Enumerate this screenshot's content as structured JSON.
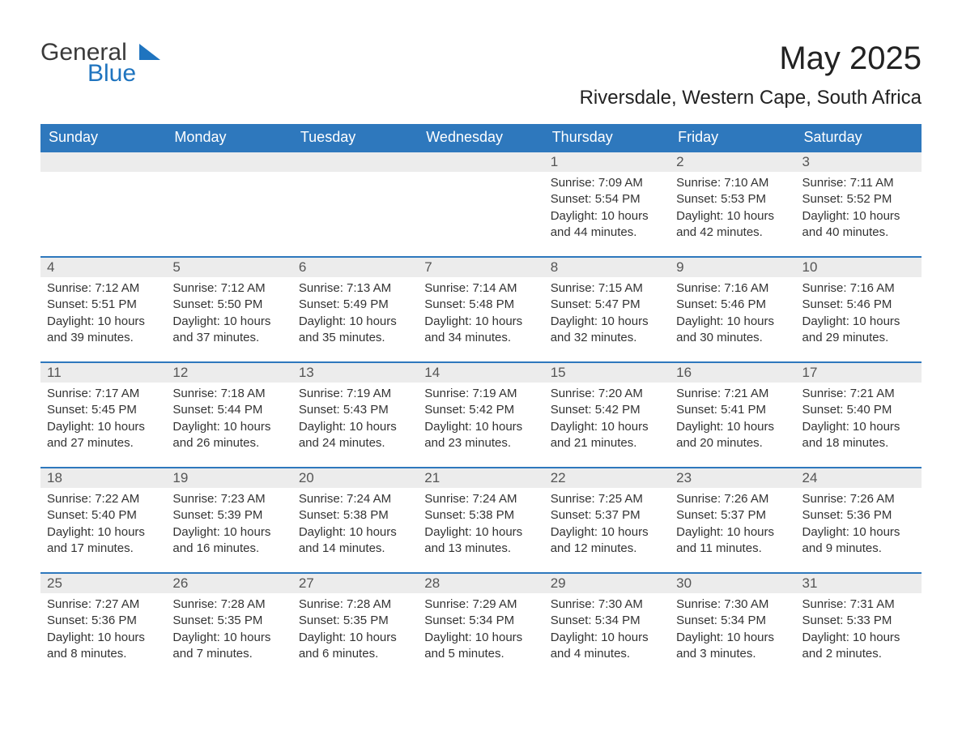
{
  "brand": {
    "word1": "General",
    "word2": "Blue"
  },
  "title": "May 2025",
  "location": "Riversdale, Western Cape, South Africa",
  "colors": {
    "header_bg": "#2e78bd",
    "header_text": "#ffffff",
    "daynum_bg": "#ececec",
    "row_border": "#2e78bd",
    "brand_blue": "#1f74bf",
    "body_text": "#333333",
    "page_bg": "#ffffff"
  },
  "typography": {
    "title_fontsize": 40,
    "location_fontsize": 24,
    "header_fontsize": 18,
    "daynum_fontsize": 17,
    "body_fontsize": 15
  },
  "calendar": {
    "type": "table",
    "columns": [
      "Sunday",
      "Monday",
      "Tuesday",
      "Wednesday",
      "Thursday",
      "Friday",
      "Saturday"
    ],
    "weeks": [
      [
        null,
        null,
        null,
        null,
        {
          "n": "1",
          "sr": "Sunrise: 7:09 AM",
          "ss": "Sunset: 5:54 PM",
          "dl": "Daylight: 10 hours and 44 minutes."
        },
        {
          "n": "2",
          "sr": "Sunrise: 7:10 AM",
          "ss": "Sunset: 5:53 PM",
          "dl": "Daylight: 10 hours and 42 minutes."
        },
        {
          "n": "3",
          "sr": "Sunrise: 7:11 AM",
          "ss": "Sunset: 5:52 PM",
          "dl": "Daylight: 10 hours and 40 minutes."
        }
      ],
      [
        {
          "n": "4",
          "sr": "Sunrise: 7:12 AM",
          "ss": "Sunset: 5:51 PM",
          "dl": "Daylight: 10 hours and 39 minutes."
        },
        {
          "n": "5",
          "sr": "Sunrise: 7:12 AM",
          "ss": "Sunset: 5:50 PM",
          "dl": "Daylight: 10 hours and 37 minutes."
        },
        {
          "n": "6",
          "sr": "Sunrise: 7:13 AM",
          "ss": "Sunset: 5:49 PM",
          "dl": "Daylight: 10 hours and 35 minutes."
        },
        {
          "n": "7",
          "sr": "Sunrise: 7:14 AM",
          "ss": "Sunset: 5:48 PM",
          "dl": "Daylight: 10 hours and 34 minutes."
        },
        {
          "n": "8",
          "sr": "Sunrise: 7:15 AM",
          "ss": "Sunset: 5:47 PM",
          "dl": "Daylight: 10 hours and 32 minutes."
        },
        {
          "n": "9",
          "sr": "Sunrise: 7:16 AM",
          "ss": "Sunset: 5:46 PM",
          "dl": "Daylight: 10 hours and 30 minutes."
        },
        {
          "n": "10",
          "sr": "Sunrise: 7:16 AM",
          "ss": "Sunset: 5:46 PM",
          "dl": "Daylight: 10 hours and 29 minutes."
        }
      ],
      [
        {
          "n": "11",
          "sr": "Sunrise: 7:17 AM",
          "ss": "Sunset: 5:45 PM",
          "dl": "Daylight: 10 hours and 27 minutes."
        },
        {
          "n": "12",
          "sr": "Sunrise: 7:18 AM",
          "ss": "Sunset: 5:44 PM",
          "dl": "Daylight: 10 hours and 26 minutes."
        },
        {
          "n": "13",
          "sr": "Sunrise: 7:19 AM",
          "ss": "Sunset: 5:43 PM",
          "dl": "Daylight: 10 hours and 24 minutes."
        },
        {
          "n": "14",
          "sr": "Sunrise: 7:19 AM",
          "ss": "Sunset: 5:42 PM",
          "dl": "Daylight: 10 hours and 23 minutes."
        },
        {
          "n": "15",
          "sr": "Sunrise: 7:20 AM",
          "ss": "Sunset: 5:42 PM",
          "dl": "Daylight: 10 hours and 21 minutes."
        },
        {
          "n": "16",
          "sr": "Sunrise: 7:21 AM",
          "ss": "Sunset: 5:41 PM",
          "dl": "Daylight: 10 hours and 20 minutes."
        },
        {
          "n": "17",
          "sr": "Sunrise: 7:21 AM",
          "ss": "Sunset: 5:40 PM",
          "dl": "Daylight: 10 hours and 18 minutes."
        }
      ],
      [
        {
          "n": "18",
          "sr": "Sunrise: 7:22 AM",
          "ss": "Sunset: 5:40 PM",
          "dl": "Daylight: 10 hours and 17 minutes."
        },
        {
          "n": "19",
          "sr": "Sunrise: 7:23 AM",
          "ss": "Sunset: 5:39 PM",
          "dl": "Daylight: 10 hours and 16 minutes."
        },
        {
          "n": "20",
          "sr": "Sunrise: 7:24 AM",
          "ss": "Sunset: 5:38 PM",
          "dl": "Daylight: 10 hours and 14 minutes."
        },
        {
          "n": "21",
          "sr": "Sunrise: 7:24 AM",
          "ss": "Sunset: 5:38 PM",
          "dl": "Daylight: 10 hours and 13 minutes."
        },
        {
          "n": "22",
          "sr": "Sunrise: 7:25 AM",
          "ss": "Sunset: 5:37 PM",
          "dl": "Daylight: 10 hours and 12 minutes."
        },
        {
          "n": "23",
          "sr": "Sunrise: 7:26 AM",
          "ss": "Sunset: 5:37 PM",
          "dl": "Daylight: 10 hours and 11 minutes."
        },
        {
          "n": "24",
          "sr": "Sunrise: 7:26 AM",
          "ss": "Sunset: 5:36 PM",
          "dl": "Daylight: 10 hours and 9 minutes."
        }
      ],
      [
        {
          "n": "25",
          "sr": "Sunrise: 7:27 AM",
          "ss": "Sunset: 5:36 PM",
          "dl": "Daylight: 10 hours and 8 minutes."
        },
        {
          "n": "26",
          "sr": "Sunrise: 7:28 AM",
          "ss": "Sunset: 5:35 PM",
          "dl": "Daylight: 10 hours and 7 minutes."
        },
        {
          "n": "27",
          "sr": "Sunrise: 7:28 AM",
          "ss": "Sunset: 5:35 PM",
          "dl": "Daylight: 10 hours and 6 minutes."
        },
        {
          "n": "28",
          "sr": "Sunrise: 7:29 AM",
          "ss": "Sunset: 5:34 PM",
          "dl": "Daylight: 10 hours and 5 minutes."
        },
        {
          "n": "29",
          "sr": "Sunrise: 7:30 AM",
          "ss": "Sunset: 5:34 PM",
          "dl": "Daylight: 10 hours and 4 minutes."
        },
        {
          "n": "30",
          "sr": "Sunrise: 7:30 AM",
          "ss": "Sunset: 5:34 PM",
          "dl": "Daylight: 10 hours and 3 minutes."
        },
        {
          "n": "31",
          "sr": "Sunrise: 7:31 AM",
          "ss": "Sunset: 5:33 PM",
          "dl": "Daylight: 10 hours and 2 minutes."
        }
      ]
    ]
  }
}
